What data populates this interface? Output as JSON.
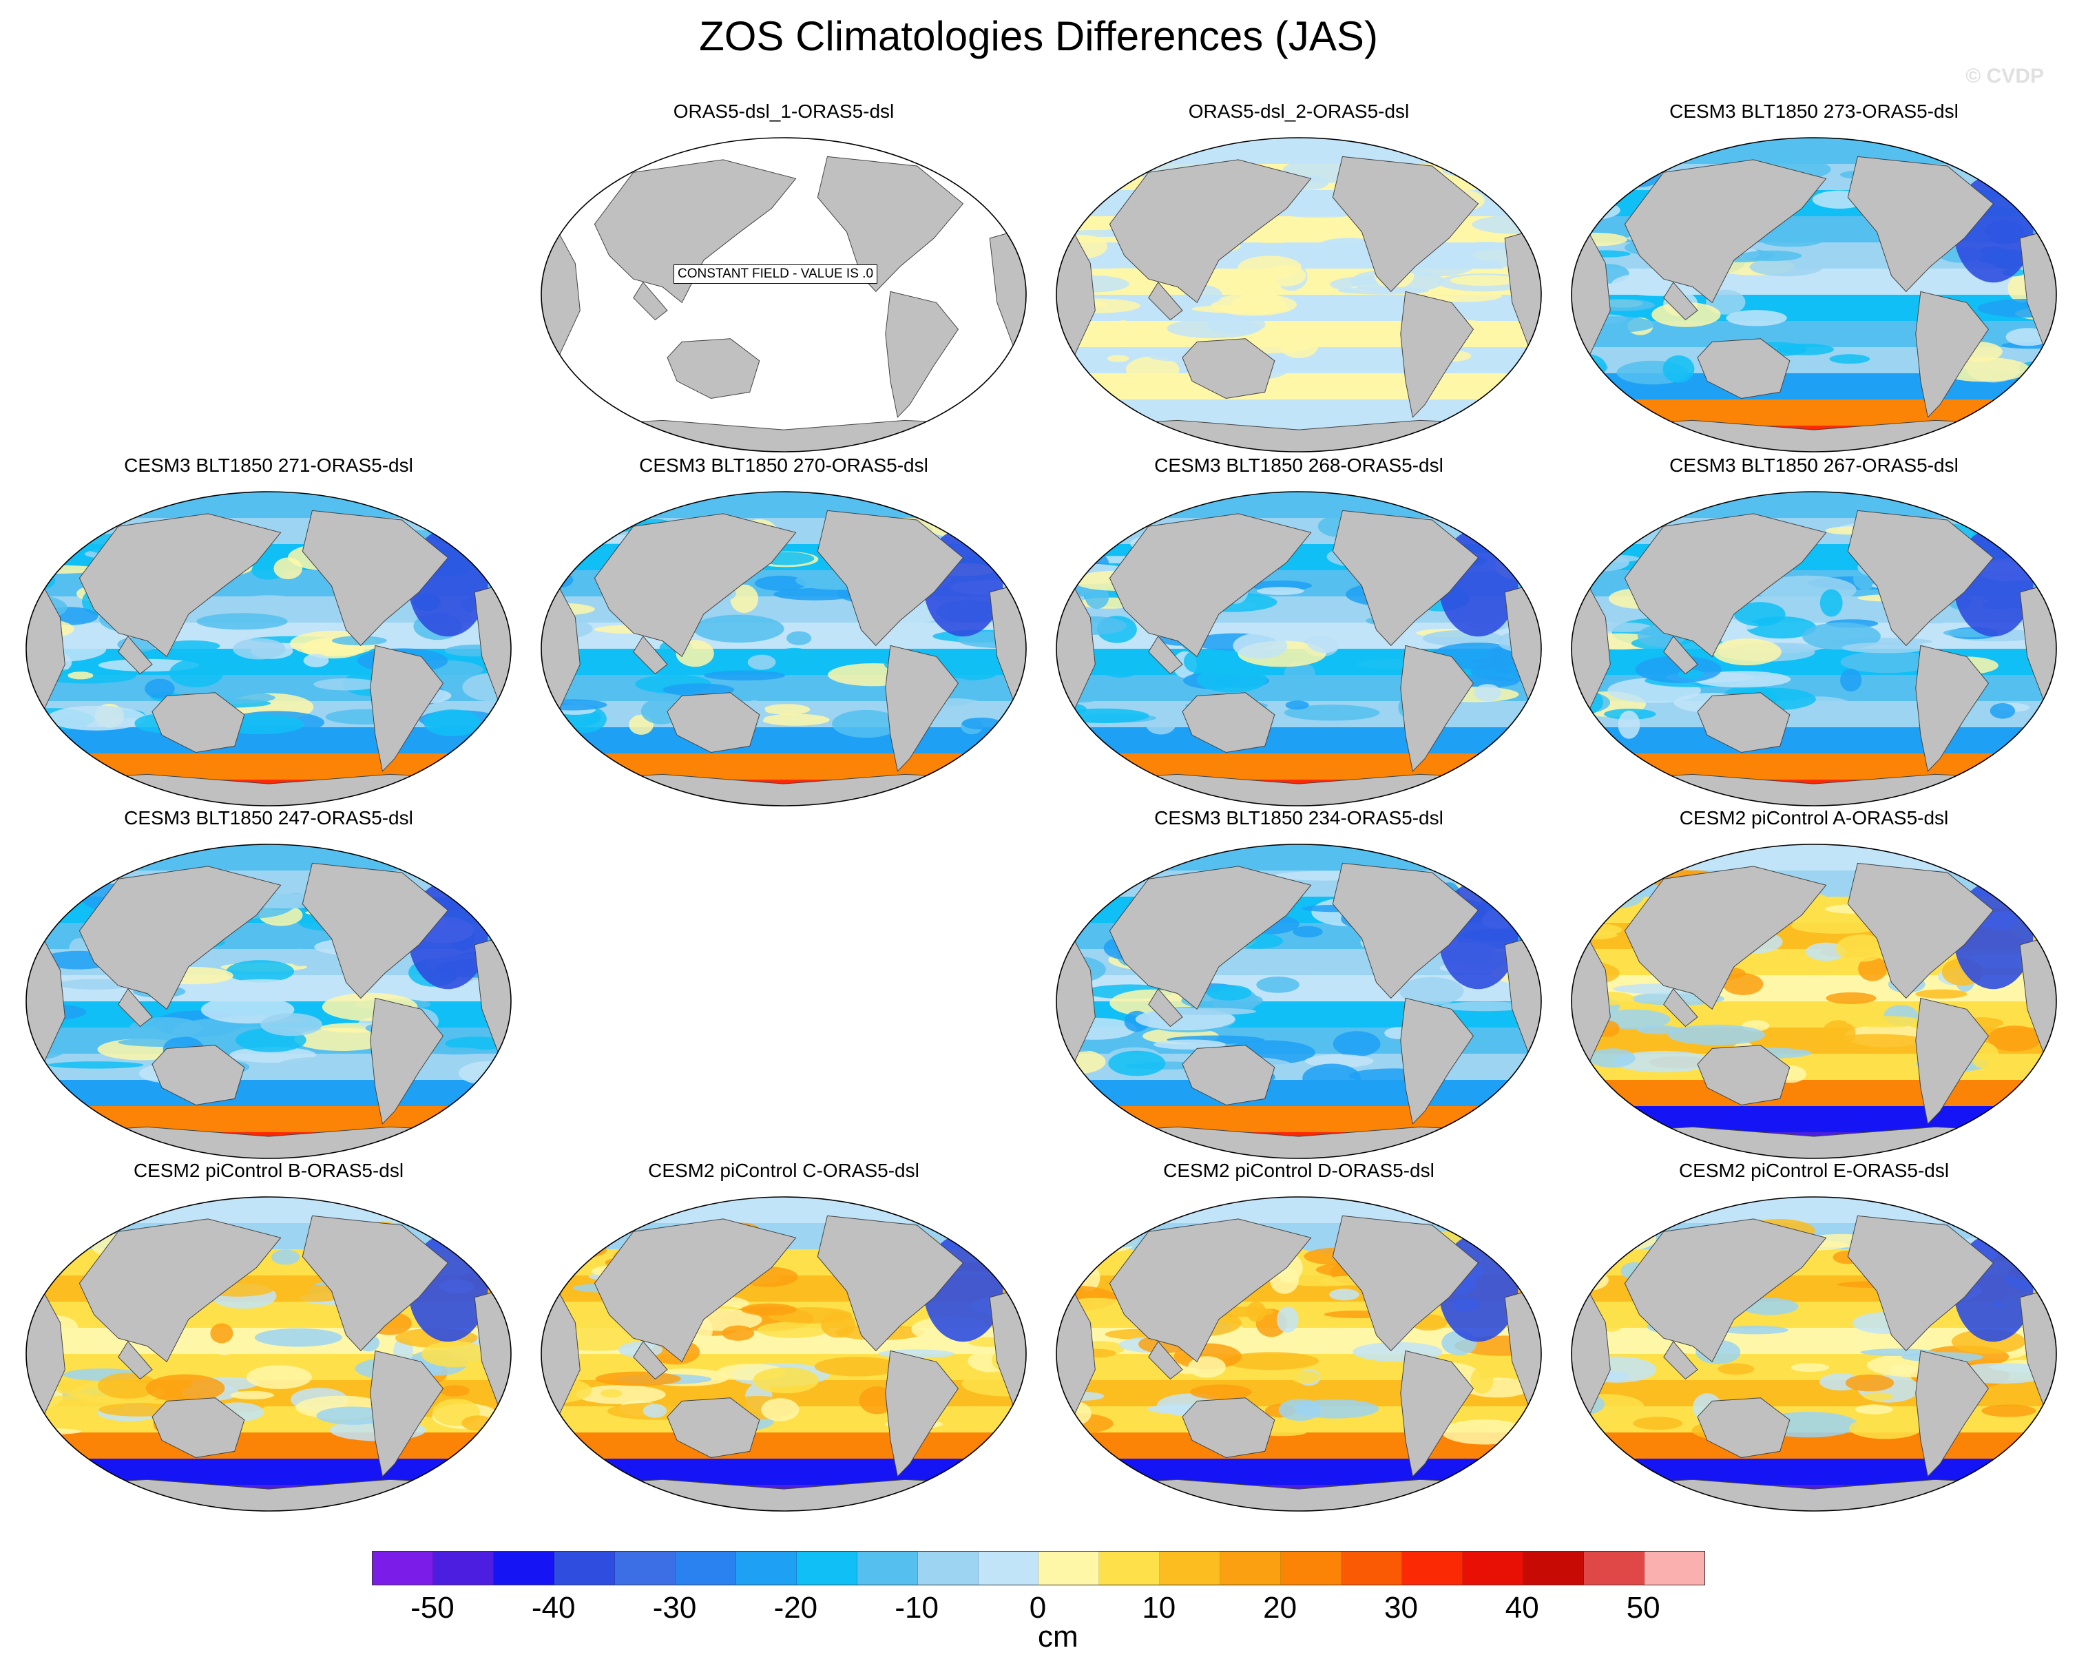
{
  "title": "ZOS Climatologies Differences (JAS)",
  "watermark": "© CVDP",
  "panels": [
    {
      "title": "ORAS5-dsl_1-ORAS5-dsl",
      "row": 0,
      "col": 1,
      "pattern": "constant",
      "note": "CONSTANT FIELD - VALUE IS .0"
    },
    {
      "title": "ORAS5-dsl_2-ORAS5-dsl",
      "row": 0,
      "col": 2,
      "pattern": "near-zero"
    },
    {
      "title": "CESM3 BLT1850 273-ORAS5-dsl",
      "row": 0,
      "col": 3,
      "pattern": "negative"
    },
    {
      "title": "CESM3 BLT1850 271-ORAS5-dsl",
      "row": 1,
      "col": 0,
      "pattern": "negative"
    },
    {
      "title": "CESM3 BLT1850 270-ORAS5-dsl",
      "row": 1,
      "col": 1,
      "pattern": "negative"
    },
    {
      "title": "CESM3 BLT1850 268-ORAS5-dsl",
      "row": 1,
      "col": 2,
      "pattern": "negative"
    },
    {
      "title": "CESM3 BLT1850 267-ORAS5-dsl",
      "row": 1,
      "col": 3,
      "pattern": "negative"
    },
    {
      "title": "CESM3 BLT1850 247-ORAS5-dsl",
      "row": 2,
      "col": 0,
      "pattern": "negative"
    },
    {
      "title": "CESM3 BLT1850 234-ORAS5-dsl",
      "row": 2,
      "col": 2,
      "pattern": "negative"
    },
    {
      "title": "CESM2 piControl A-ORAS5-dsl",
      "row": 2,
      "col": 3,
      "pattern": "positive"
    },
    {
      "title": "CESM2 piControl B-ORAS5-dsl",
      "row": 3,
      "col": 0,
      "pattern": "positive"
    },
    {
      "title": "CESM2 piControl C-ORAS5-dsl",
      "row": 3,
      "col": 1,
      "pattern": "positive"
    },
    {
      "title": "CESM2 piControl D-ORAS5-dsl",
      "row": 3,
      "col": 2,
      "pattern": "positive"
    },
    {
      "title": "CESM2 piControl E-ORAS5-dsl",
      "row": 3,
      "col": 3,
      "pattern": "positive"
    }
  ],
  "colorbar": {
    "units": "cm",
    "tick_labels": [
      "-50",
      "-40",
      "-30",
      "-20",
      "-10",
      "0",
      "10",
      "20",
      "30",
      "40",
      "50"
    ],
    "colors": [
      "#7b1ce8",
      "#4b1ee0",
      "#1414f5",
      "#2f4ee0",
      "#3c6fe6",
      "#2a82f0",
      "#1ea0f5",
      "#10bff5",
      "#55c0f0",
      "#9cd4f2",
      "#c2e4f8",
      "#fff7a8",
      "#fde04a",
      "#fbbd20",
      "#fba010",
      "#fb8305",
      "#fb5a05",
      "#fb2a05",
      "#e81005",
      "#c80a05",
      "#e04848",
      "#fbb0b0"
    ]
  }
}
